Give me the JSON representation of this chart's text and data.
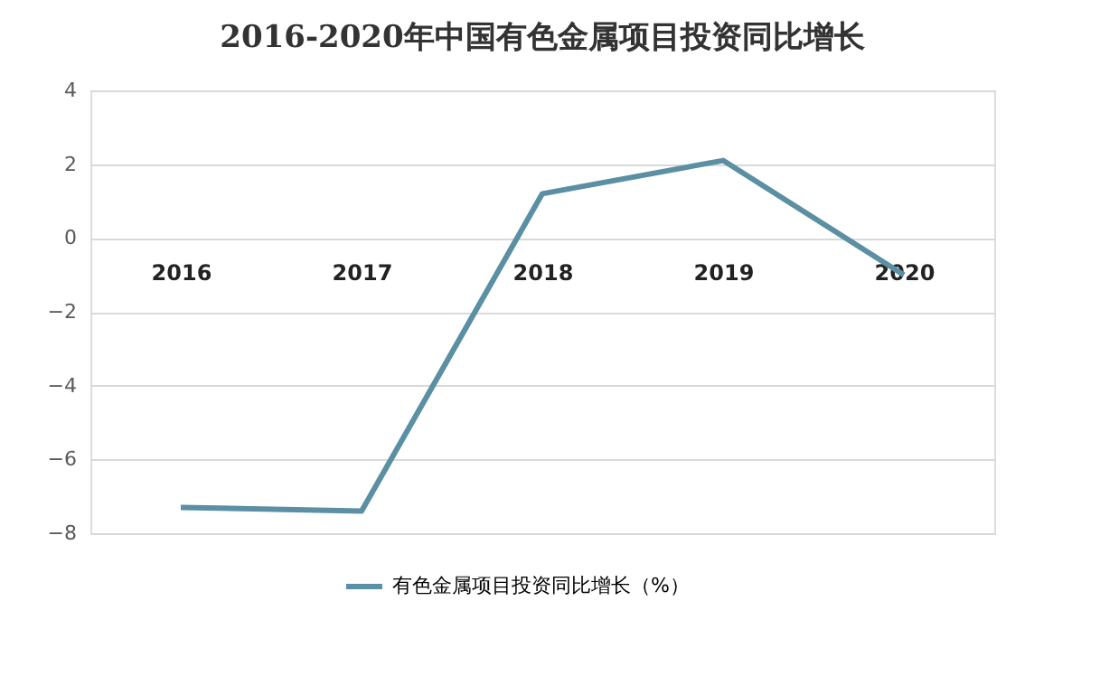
{
  "chart_data": {
    "type": "line",
    "title": "2016-2020年中国有色金属项目投资同比增长",
    "categories": [
      "2016",
      "2017",
      "2018",
      "2019",
      "2020"
    ],
    "series": [
      {
        "name": "有色金属项目投资同比增长（%）",
        "color": "#5b8fa3",
        "values": [
          -7.3,
          -7.4,
          1.2,
          2.1,
          -1.0
        ]
      }
    ],
    "ylim": [
      -8,
      4
    ],
    "yticks": [
      -8,
      -6,
      -4,
      -2,
      0,
      2,
      4
    ],
    "grid": "y",
    "legend": "bottom",
    "marker": "none",
    "line_style": "solid"
  }
}
